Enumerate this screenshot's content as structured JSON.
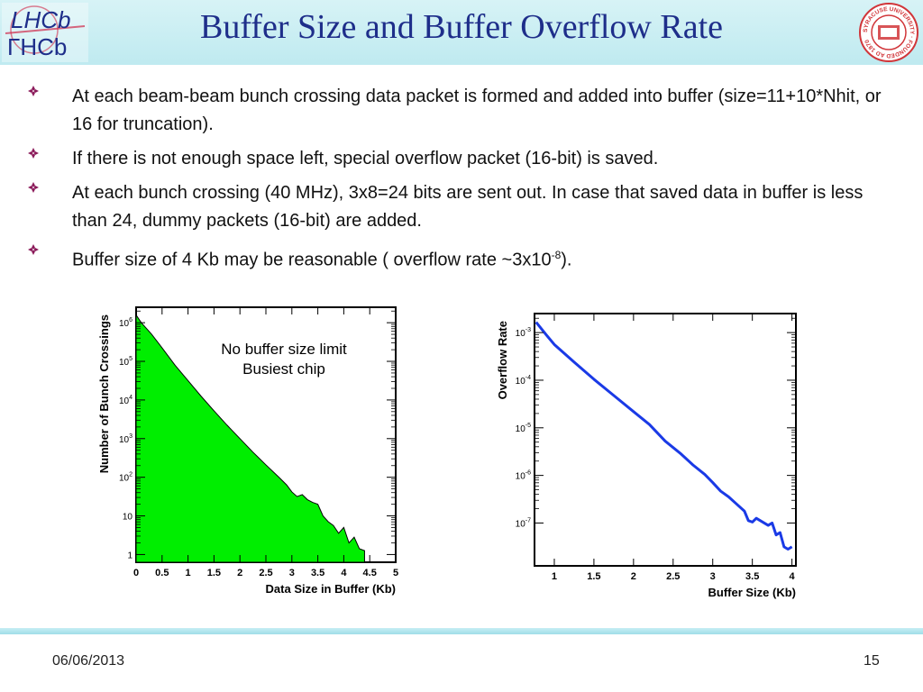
{
  "slide": {
    "title": "Buffer Size and Buffer Overflow Rate",
    "logo_left_text": "LHCb",
    "logo_left_text2": "ΓHCb",
    "logo_right_text": "SYRACUSE UNIVERSITY · FOUNDED AD 1870",
    "footer_date": "06/06/2013",
    "page_number": "15"
  },
  "bullets": [
    {
      "text": "At each beam-beam bunch crossing data packet is formed and added into buffer (size=11+10*Nhit, or 16 for truncation)."
    },
    {
      "text": "If there is not enough space left, special overflow packet (16-bit) is saved."
    },
    {
      "text": "At each bunch crossing (40 MHz), 3x8=24 bits are sent out. In case that saved data in buffer is less than 24, dummy packets (16-bit) are added."
    },
    {
      "text_before": "Buffer size of 4 Kb may be reasonable ( overflow rate ~3x10",
      "sup": "-8",
      "text_after": ")."
    }
  ],
  "colors": {
    "title": "#1e2e8a",
    "bullet_marker": "#8b1a5a",
    "histogram_fill": "#00ee00",
    "overflow_line": "#1a3ae6"
  },
  "chart_data": [
    {
      "type": "area",
      "title": "",
      "annotation_lines": [
        "No buffer size limit",
        "Busiest chip"
      ],
      "xlabel": "Data Size in Buffer (Kb)",
      "ylabel": "Number of Bunch Crossings",
      "xlim": [
        0,
        5
      ],
      "ylim_log10": [
        -0.2,
        6.4
      ],
      "y_scale": "log",
      "x_ticks": [
        0,
        0.5,
        1,
        1.5,
        2,
        2.5,
        3,
        3.5,
        4,
        4.5,
        5
      ],
      "x_tick_labels": [
        "0",
        "0.5",
        "1",
        "1.5",
        "2",
        "2.5",
        "3",
        "3.5",
        "4",
        "4.5",
        "5"
      ],
      "y_tick_labels": [
        {
          "base": "1",
          "exp": ""
        },
        {
          "base": "10",
          "exp": ""
        },
        {
          "base": "10",
          "exp": "2"
        },
        {
          "base": "10",
          "exp": "3"
        },
        {
          "base": "10",
          "exp": "4"
        },
        {
          "base": "10",
          "exp": "5"
        },
        {
          "base": "10",
          "exp": "6"
        }
      ],
      "series": [
        {
          "name": "Busiest chip",
          "x": [
            0.0,
            0.1,
            0.2,
            0.3,
            0.5,
            0.75,
            1.0,
            1.25,
            1.5,
            1.75,
            2.0,
            2.25,
            2.5,
            2.75,
            2.9,
            3.0,
            3.1,
            3.2,
            3.3,
            3.4,
            3.5,
            3.6,
            3.7,
            3.8,
            3.9,
            4.0,
            4.1,
            4.2,
            4.3,
            4.4
          ],
          "log10_values": [
            6.2,
            6.0,
            5.85,
            5.7,
            5.35,
            4.9,
            4.5,
            4.1,
            3.72,
            3.35,
            3.0,
            2.65,
            2.32,
            2.0,
            1.8,
            1.62,
            1.5,
            1.55,
            1.42,
            1.35,
            1.3,
            1.0,
            0.85,
            0.75,
            0.55,
            0.7,
            0.3,
            0.45,
            0.15,
            0.1
          ]
        }
      ]
    },
    {
      "type": "line",
      "title": "",
      "xlabel": "Buffer Size (Kb)",
      "ylabel": "Overflow Rate",
      "xlim": [
        0.75,
        4.05
      ],
      "ylim_log10": [
        -7.9,
        -2.6
      ],
      "y_scale": "log",
      "x_ticks": [
        1,
        1.5,
        2,
        2.5,
        3,
        3.5,
        4
      ],
      "x_tick_labels": [
        "1",
        "1.5",
        "2",
        "2.5",
        "3",
        "3.5",
        "4"
      ],
      "y_tick_labels": [
        {
          "base": "10",
          "exp": "-7"
        },
        {
          "base": "10",
          "exp": "-6"
        },
        {
          "base": "10",
          "exp": "-5"
        },
        {
          "base": "10",
          "exp": "-4"
        },
        {
          "base": "10",
          "exp": "-3"
        }
      ],
      "series": [
        {
          "name": "Overflow Rate",
          "x": [
            0.77,
            0.9,
            1.0,
            1.25,
            1.5,
            1.75,
            2.0,
            2.2,
            2.4,
            2.6,
            2.75,
            2.9,
            3.0,
            3.1,
            3.2,
            3.3,
            3.4,
            3.45,
            3.5,
            3.55,
            3.6,
            3.7,
            3.75,
            3.8,
            3.85,
            3.9,
            3.95,
            4.0
          ],
          "log10_values": [
            -2.78,
            -3.05,
            -3.25,
            -3.62,
            -3.98,
            -4.32,
            -4.66,
            -4.93,
            -5.28,
            -5.55,
            -5.78,
            -5.98,
            -6.15,
            -6.33,
            -6.45,
            -6.6,
            -6.75,
            -6.95,
            -6.98,
            -6.9,
            -6.95,
            -7.05,
            -7.0,
            -7.25,
            -7.2,
            -7.5,
            -7.55,
            -7.5
          ]
        }
      ]
    }
  ]
}
